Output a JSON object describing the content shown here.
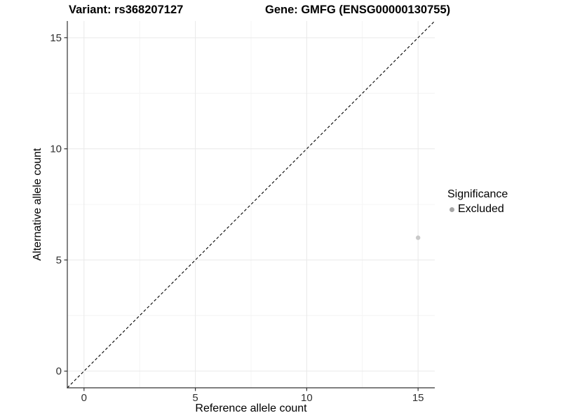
{
  "chart_data": {
    "type": "scatter",
    "title_variant": "Variant: rs368207127",
    "title_gene": "Gene: GMFG (ENSG00000130755)",
    "xlabel": "Reference allele count",
    "ylabel": "Alternative allele count",
    "x_ticks": [
      0,
      5,
      10,
      15
    ],
    "y_ticks": [
      0,
      5,
      10,
      15
    ],
    "x_minor_ticks": [
      2.5,
      7.5,
      12.5
    ],
    "y_minor_ticks": [
      2.5,
      7.5,
      12.5
    ],
    "xlim": [
      -0.75,
      15.75
    ],
    "ylim": [
      -0.75,
      15.75
    ],
    "grid": "major and minor gridlines, white background",
    "reference_line": {
      "type": "identity y=x",
      "style": "dashed",
      "color": "#000000"
    },
    "points": [
      {
        "x": 15,
        "y": 6,
        "significance": "Excluded"
      }
    ],
    "legend": {
      "title": "Significance",
      "position": "right",
      "entries": [
        {
          "label": "Excluded",
          "color": "#a6a6a6"
        }
      ]
    },
    "colors": {
      "point": "#c9c9c9",
      "grid_major": "#e9e9e9",
      "grid_minor": "#f4f4f4",
      "axis_line": "#333333",
      "tick_label": "#303030",
      "background": "#ffffff"
    }
  }
}
